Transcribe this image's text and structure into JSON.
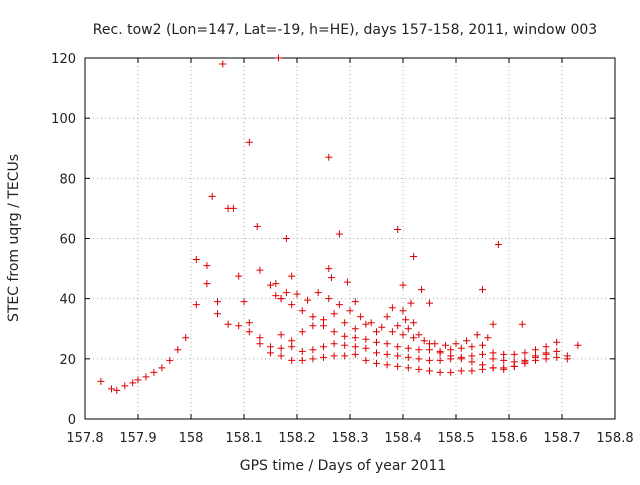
{
  "chart_data": {
    "type": "scatter",
    "title": "Rec. tow2 (Lon=147, Lat=-19, h=HE), days 157-158, 2011, window 003",
    "xlabel": "GPS time / Days of year 2011",
    "ylabel": "STEC from uqrg / TECUs",
    "xlim": [
      157.8,
      158.8
    ],
    "ylim": [
      0,
      120
    ],
    "xticks": [
      157.8,
      157.9,
      158,
      158.1,
      158.2,
      158.3,
      158.4,
      158.5,
      158.6,
      158.7,
      158.8
    ],
    "xtick_labels": [
      "157.8",
      "157.9",
      "158",
      "158.1",
      "158.2",
      "158.3",
      "158.4",
      "158.5",
      "158.6",
      "158.7",
      "158.8"
    ],
    "yticks": [
      0,
      20,
      40,
      60,
      80,
      100,
      120
    ],
    "ytick_labels": [
      "0",
      "20",
      "40",
      "60",
      "80",
      "100",
      "120"
    ],
    "grid": true,
    "color": "#dd0000",
    "marker": "plus",
    "series": [
      {
        "x": [
          157.83,
          157.85,
          157.86,
          157.875,
          157.89,
          157.9,
          157.915,
          157.93,
          157.945,
          157.96,
          157.975,
          157.99,
          158.01,
          158.03,
          158.05,
          158.07,
          158.09,
          158.11,
          158.13,
          158.15,
          158.17,
          158.19,
          158.21,
          158.23,
          158.25,
          158.27,
          158.29,
          158.31,
          158.33,
          158.35,
          158.37,
          158.39,
          158.41,
          158.43,
          158.45,
          158.47,
          158.49,
          158.51,
          158.53,
          158.55,
          158.57,
          158.59,
          158.61,
          158.63,
          158.65,
          158.67,
          158.69,
          158.71,
          158.73
        ],
        "y": [
          12.5,
          10,
          9.5,
          11,
          12,
          13,
          14,
          15.5,
          17,
          19.5,
          23,
          27,
          38,
          45,
          35,
          31.5,
          31,
          29,
          27,
          24,
          21,
          19.5,
          19.5,
          20,
          20.5,
          21,
          21,
          21.5,
          19.5,
          18.5,
          18,
          17.5,
          17,
          16.5,
          16,
          15.5,
          15.5,
          16,
          16,
          16.5,
          17,
          17,
          17.5,
          18.5,
          19.5,
          20,
          20.5,
          21,
          24.5
        ]
      },
      {
        "x": [
          158.03,
          158.05,
          158.07,
          158.09,
          158.11,
          158.13,
          158.15,
          158.17,
          158.19,
          158.21,
          158.23,
          158.25,
          158.27,
          158.29,
          158.31,
          158.33,
          158.35,
          158.37,
          158.39,
          158.41,
          158.43,
          158.45,
          158.47,
          158.49,
          158.51,
          158.53,
          158.55,
          158.57,
          158.59,
          158.61,
          158.63,
          158.65,
          158.67,
          158.69,
          158.71
        ],
        "y": [
          51,
          39,
          70,
          47.5,
          32,
          25,
          22,
          23.5,
          24,
          22.5,
          23,
          24,
          25,
          24.5,
          24,
          23.5,
          22,
          21.5,
          21,
          20.5,
          20,
          19.5,
          19.5,
          20,
          20.5,
          21,
          21.5,
          20,
          19.5,
          19,
          19.5,
          20.5,
          21.5,
          22.5,
          20
        ]
      },
      {
        "x": [
          158.13,
          158.15,
          158.17,
          158.19,
          158.21,
          158.23,
          158.25,
          158.27,
          158.29,
          158.31,
          158.33,
          158.35,
          158.37,
          158.39,
          158.41,
          158.43,
          158.45,
          158.47,
          158.49,
          158.51,
          158.53,
          158.55,
          158.57,
          158.59,
          158.61,
          158.63,
          158.65,
          158.67,
          158.69
        ],
        "y": [
          49.5,
          44.5,
          40,
          38,
          36,
          34,
          31,
          29,
          27.5,
          27,
          26.5,
          25.5,
          25,
          24,
          23.5,
          23,
          23,
          22.5,
          23,
          23.5,
          24,
          24.5,
          22,
          21.5,
          21.5,
          22,
          23,
          24,
          25.5
        ]
      },
      {
        "x": [
          158.16,
          158.18,
          158.2,
          158.22,
          158.24,
          158.26,
          158.28,
          158.3,
          158.32,
          158.34,
          158.36,
          158.38,
          158.4,
          158.42,
          158.44,
          158.46,
          158.48,
          158.5,
          158.52,
          158.54,
          158.56
        ],
        "y": [
          41,
          42,
          41.5,
          39.5,
          42,
          40,
          38,
          36,
          34,
          32,
          30.5,
          29,
          28,
          27,
          26,
          25,
          24.5,
          25,
          26,
          28,
          27
        ]
      },
      {
        "x": [
          158.17,
          158.19,
          158.21,
          158.23,
          158.25,
          158.27,
          158.29,
          158.31,
          158.33,
          158.35,
          158.37,
          158.39,
          158.41,
          158.43,
          158.45,
          158.47,
          158.49,
          158.51,
          158.53,
          158.55,
          158.57,
          158.59,
          158.61,
          158.63,
          158.65,
          158.67
        ],
        "y": [
          28,
          26,
          29,
          31,
          33,
          35,
          32,
          30,
          31.5,
          29,
          34,
          31,
          30,
          28,
          25,
          22,
          21,
          20,
          19,
          18,
          17,
          16.5,
          17.5,
          19,
          21,
          22
        ]
      },
      {
        "x": [
          158.01,
          158.04,
          158.06,
          158.08,
          158.1,
          158.11,
          158.125,
          158.16,
          158.165,
          158.17,
          158.18,
          158.19,
          158.26,
          158.26,
          158.265,
          158.28,
          158.295,
          158.31,
          158.39,
          158.4,
          158.415,
          158.42,
          158.435,
          158.45,
          158.55,
          158.58,
          158.57,
          158.625,
          158.4,
          158.38,
          158.405,
          158.42
        ],
        "y": [
          53,
          74,
          118,
          70,
          39,
          92,
          64,
          45,
          120,
          40,
          60,
          47.5,
          50,
          87,
          47,
          61.5,
          45.5,
          39,
          63,
          44.5,
          38.5,
          54,
          43,
          38.5,
          43,
          58,
          31.5,
          31.5,
          36,
          37,
          33,
          32
        ]
      }
    ]
  }
}
